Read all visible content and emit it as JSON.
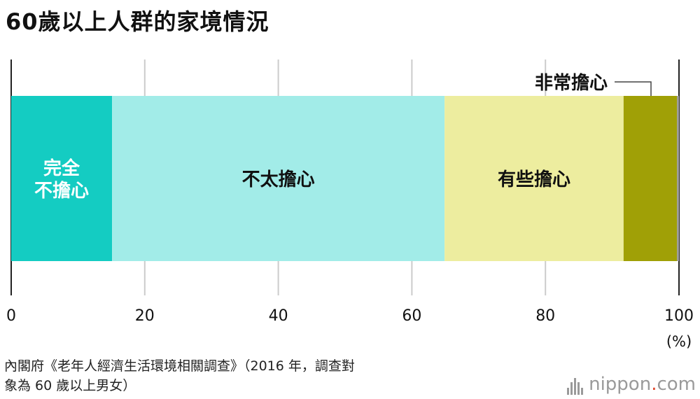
{
  "title": "60歲以上人群的家境情況",
  "chart_data": {
    "type": "bar",
    "orientation": "horizontal-stacked-100",
    "title": "60歲以上人群的家境情況",
    "x_ticks": [
      "0",
      "20",
      "40",
      "60",
      "80",
      "100"
    ],
    "x_unit": "(%)",
    "xlim": [
      0,
      100
    ],
    "grid": true,
    "series": [
      {
        "name": "完全\n不擔心",
        "value": 15.1,
        "color": "#14ccc2",
        "label_lines": [
          "完全",
          "不擔心"
        ],
        "label_color": "#ffffff"
      },
      {
        "name": "不太擔心",
        "value": 49.8,
        "color": "#a2ece8",
        "label_lines": [
          "不太擔心"
        ],
        "label_color": "#111111"
      },
      {
        "name": "有些擔心",
        "value": 26.8,
        "color": "#eded9f",
        "label_lines": [
          "有些擔心"
        ],
        "label_color": "#111111"
      },
      {
        "name": "非常擔心",
        "value": 8.0,
        "color": "#a0a006",
        "label_lines": [
          "非常擔心"
        ],
        "label_color": "#111111",
        "callout": true
      },
      {
        "name": "",
        "value": 0.3,
        "color": "#9a9a9a",
        "label_lines": []
      }
    ]
  },
  "source_line1": "內閣府《老年人經濟生活環境相關調查》（2016 年，調查對",
  "source_line2": "象為 60 歲以上男女）",
  "logo": {
    "brand": "nippon",
    "dot": ".",
    "suffix": "com",
    "dot_color": "#e0462c"
  }
}
